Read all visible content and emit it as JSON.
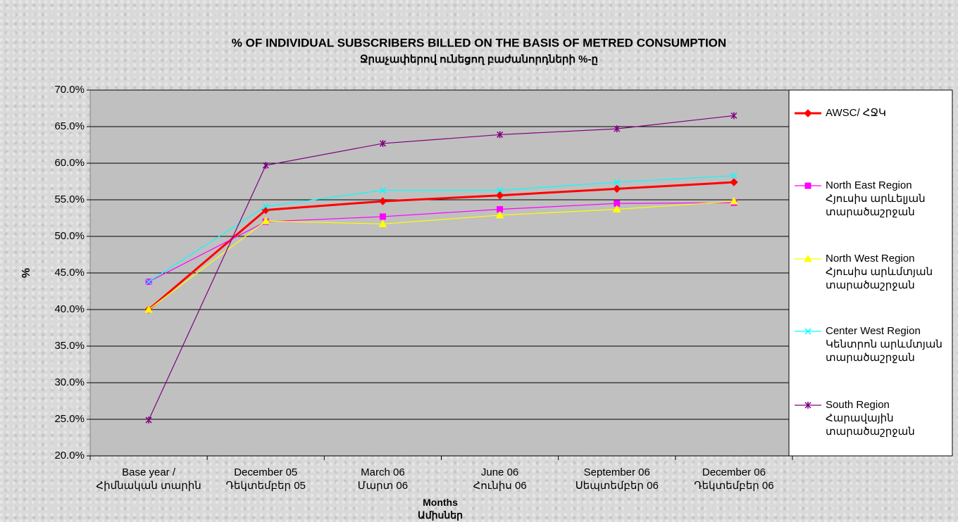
{
  "chart_data": {
    "type": "line",
    "title": "% OF INDIVIDUAL SUBSCRIBERS BILLED ON THE BASIS OF METRED CONSUMPTION",
    "subtitle": "Ջրաչափերով ունեցող բաժանորդների %-ը",
    "y_label": "%",
    "x_label": "Months\nԱմիսներ",
    "categories": [
      "Base year /\nՀիմնական տարին",
      "December 05\nԴեկտեմբեր 05",
      "March 06\nՄարտ 06",
      "June 06\nՀունիս 06",
      "September 06\nՍեպտեմբեր 06",
      "December 06\nԴեկտեմբեր 06"
    ],
    "ylim": [
      20,
      70
    ],
    "yticks": [
      {
        "value": 20,
        "label": "20.0%"
      },
      {
        "value": 25,
        "label": "25.0%"
      },
      {
        "value": 30,
        "label": "30.0%"
      },
      {
        "value": 35,
        "label": "35.0%"
      },
      {
        "value": 40,
        "label": "40.0%"
      },
      {
        "value": 45,
        "label": "45.0%"
      },
      {
        "value": 50,
        "label": "50.0%"
      },
      {
        "value": 55,
        "label": "55.0%"
      },
      {
        "value": 60,
        "label": "60.0%"
      },
      {
        "value": 65,
        "label": "65.0%"
      },
      {
        "value": 70,
        "label": "70.0%"
      }
    ],
    "grid": true,
    "legend": "right",
    "series": [
      {
        "name": "AWSC/ ՀՋԿ",
        "color": "#ff0000",
        "marker": "diamond",
        "width": 3,
        "values": [
          40.0,
          53.6,
          54.8,
          55.6,
          56.5,
          57.4
        ]
      },
      {
        "name": "North East Region\nՀյուսիս արևելյան\nտարածաշրջան",
        "color": "#ff00ff",
        "marker": "square",
        "width": 1.2,
        "values": [
          43.8,
          52.0,
          52.7,
          53.7,
          54.5,
          54.6
        ]
      },
      {
        "name": "North West Region\nՀյուսիս արևմտյան\nտարածաշրջան",
        "color": "#ffff00",
        "marker": "triangle",
        "width": 1.2,
        "values": [
          40.0,
          52.1,
          51.7,
          52.9,
          53.7,
          54.8
        ]
      },
      {
        "name": "Center West Region\nԿենտրոն արևմտյան\nտարածաշրջան",
        "color": "#00ffff",
        "marker": "x",
        "width": 1.2,
        "values": [
          43.8,
          54.1,
          56.3,
          56.3,
          57.4,
          58.3
        ]
      },
      {
        "name": "South Region\nՀարավային\nտարածաշրջան",
        "color": "#800080",
        "marker": "star",
        "width": 1.2,
        "values": [
          24.9,
          59.7,
          62.7,
          63.9,
          64.7,
          66.5
        ]
      }
    ]
  }
}
